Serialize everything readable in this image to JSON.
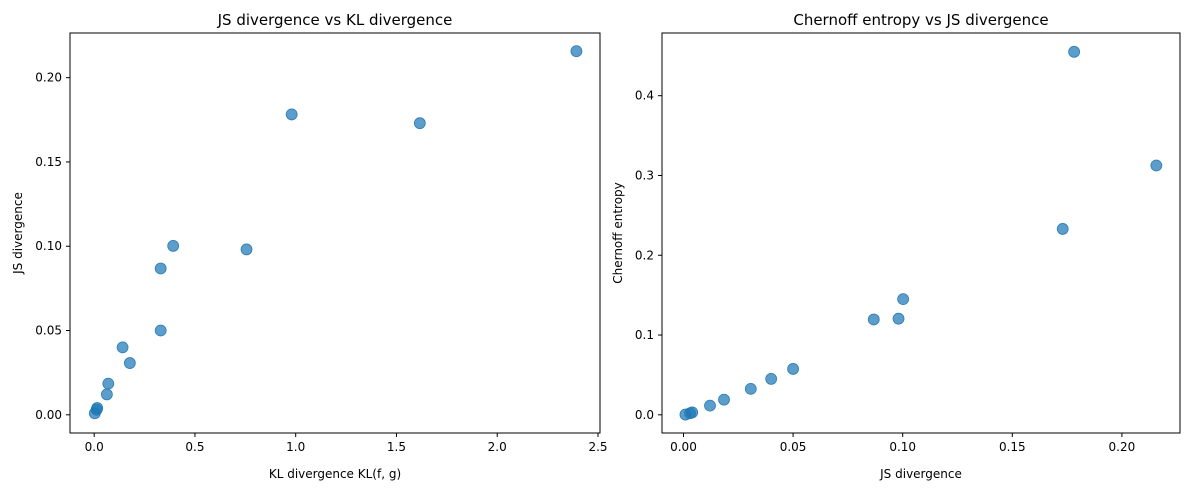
{
  "chart_data": [
    {
      "type": "scatter",
      "title": "JS divergence vs KL divergence",
      "xlabel": "KL divergence KL(f, g)",
      "ylabel": "JS divergence",
      "xlim": [
        -0.12,
        2.51
      ],
      "ylim": [
        -0.0108,
        0.2265
      ],
      "xticks": [
        0.0,
        0.5,
        1.0,
        1.5,
        2.0,
        2.5
      ],
      "xtick_labels": [
        "0.0",
        "0.5",
        "1.0",
        "1.5",
        "2.0",
        "2.5"
      ],
      "yticks": [
        0.0,
        0.05,
        0.1,
        0.15,
        0.2
      ],
      "ytick_labels": [
        "0.00",
        "0.05",
        "0.10",
        "0.15",
        "0.20"
      ],
      "grid": false,
      "marker_color": "#1f77b4",
      "points": [
        {
          "x": 0.003,
          "y": 0.0009
        },
        {
          "x": 0.012,
          "y": 0.003
        },
        {
          "x": 0.015,
          "y": 0.004
        },
        {
          "x": 0.063,
          "y": 0.0121
        },
        {
          "x": 0.07,
          "y": 0.0185
        },
        {
          "x": 0.141,
          "y": 0.04
        },
        {
          "x": 0.177,
          "y": 0.0307
        },
        {
          "x": 0.33,
          "y": 0.05
        },
        {
          "x": 0.33,
          "y": 0.0868
        },
        {
          "x": 0.392,
          "y": 0.1002
        },
        {
          "x": 0.756,
          "y": 0.0981
        },
        {
          "x": 0.98,
          "y": 0.1782
        },
        {
          "x": 1.616,
          "y": 0.173
        },
        {
          "x": 2.393,
          "y": 0.2157
        }
      ]
    },
    {
      "type": "scatter",
      "title": "Chernoff entropy vs JS divergence",
      "xlabel": "JS divergence",
      "ylabel": "Chernoff entropy",
      "xlim": [
        -0.0098,
        0.2265
      ],
      "ylim": [
        -0.0228,
        0.4786
      ],
      "xticks": [
        0.0,
        0.05,
        0.1,
        0.15,
        0.2
      ],
      "xtick_labels": [
        "0.00",
        "0.05",
        "0.10",
        "0.15",
        "0.20"
      ],
      "yticks": [
        0.0,
        0.1,
        0.2,
        0.3,
        0.4
      ],
      "ytick_labels": [
        "0.0",
        "0.1",
        "0.2",
        "0.3",
        "0.4"
      ],
      "grid": false,
      "marker_color": "#1f77b4",
      "points": [
        {
          "x": 0.0009,
          "y": 0.0003
        },
        {
          "x": 0.003,
          "y": 0.002
        },
        {
          "x": 0.004,
          "y": 0.003
        },
        {
          "x": 0.0121,
          "y": 0.0115
        },
        {
          "x": 0.0185,
          "y": 0.019
        },
        {
          "x": 0.0307,
          "y": 0.0325
        },
        {
          "x": 0.04,
          "y": 0.045
        },
        {
          "x": 0.05,
          "y": 0.0575
        },
        {
          "x": 0.0868,
          "y": 0.1195
        },
        {
          "x": 0.0981,
          "y": 0.1205
        },
        {
          "x": 0.1002,
          "y": 0.145
        },
        {
          "x": 0.173,
          "y": 0.233
        },
        {
          "x": 0.1782,
          "y": 0.455
        },
        {
          "x": 0.2157,
          "y": 0.3125
        }
      ]
    }
  ]
}
